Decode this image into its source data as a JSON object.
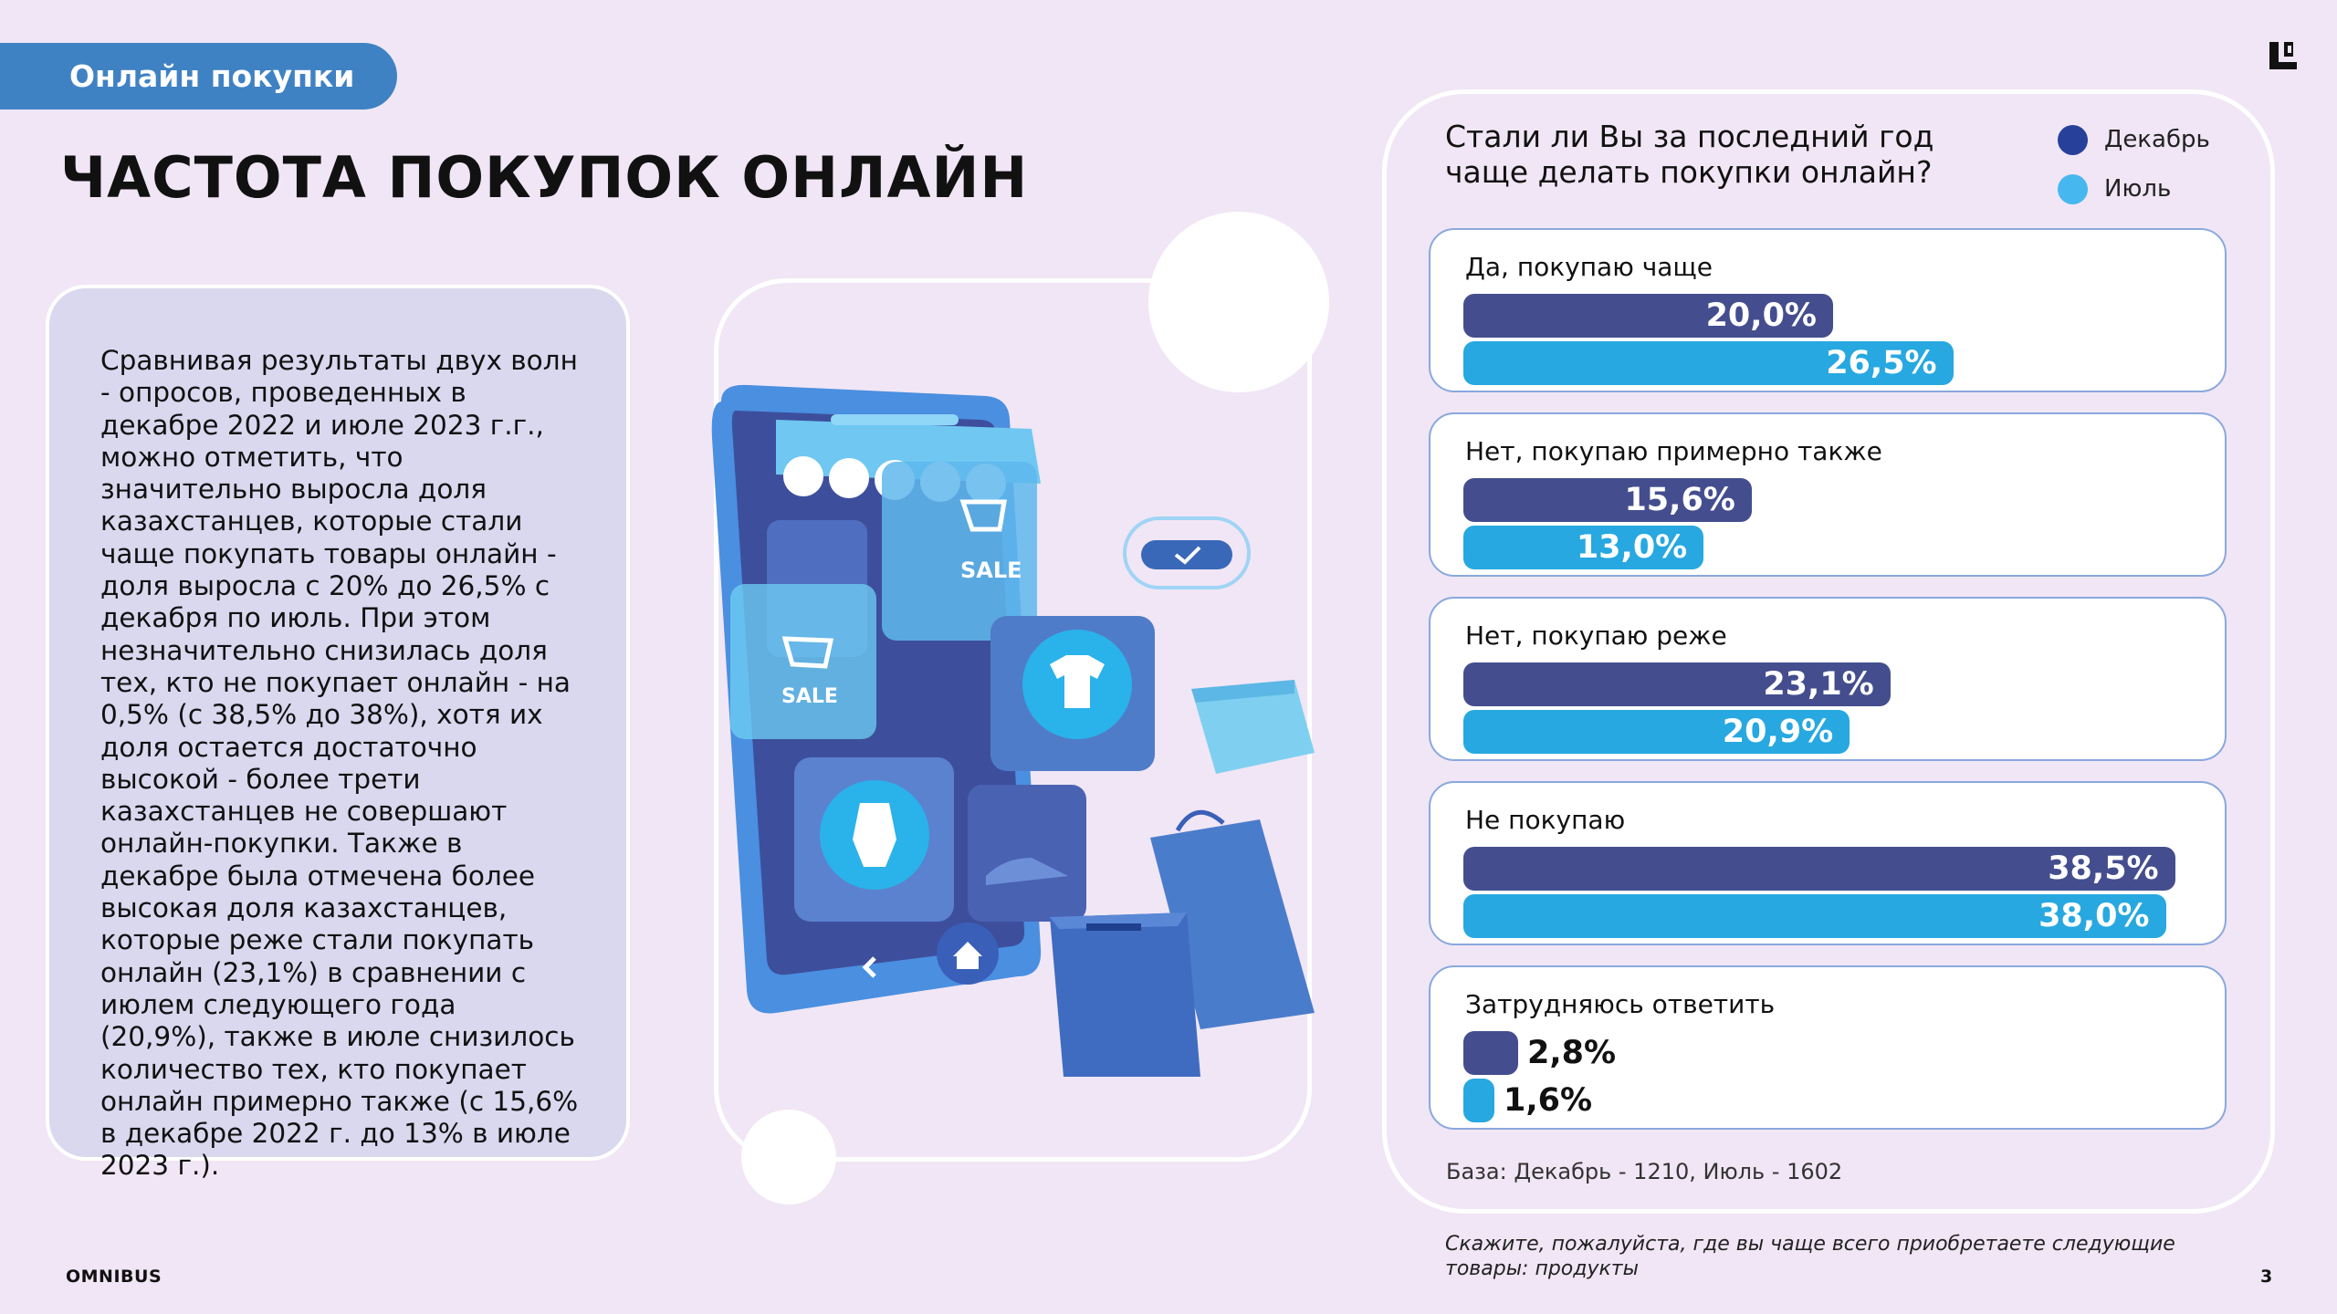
{
  "header": {
    "section_label": "Онлайн покупки",
    "title": "ЧАСТОТА ПОКУПОК ОНЛАЙН"
  },
  "summary_text": "Сравнивая результаты двух волн - опросов, проведенных в декабре 2022 и июле 2023 г.г., можно отметить, что значительно выросла доля казахстанцев, которые стали чаще покупать товары онлайн - доля выросла с 20% до 26,5% с декабря по июль. При этом незначительно снизилась доля тех, кто не покупает онлайн - на 0,5% (с 38,5% до 38%), хотя их доля остается достаточно высокой - более трети казахстанцев не совершают онлайн-покупки. Также в декабре была отмечена более высокая доля казахстанцев, которые реже стали покупать онлайн (23,1%) в сравнении с июлем следующего года (20,9%), также в июле снизилось количество тех, кто покупает онлайн примерно также (с 15,6% в декабре 2022 г. до 13% в июле 2023 г.).",
  "illustration": {
    "sale_tag_1": "SALE",
    "sale_tag_2": "SALE"
  },
  "chart_data": {
    "type": "bar",
    "orientation": "horizontal",
    "title": "Стали ли Вы за последний год чаще делать покупки онлайн?",
    "categories": [
      "Да, покупаю чаще",
      "Нет, покупаю примерно также",
      "Нет, покупаю реже",
      "Не покупаю",
      "Затрудняюсь ответить"
    ],
    "series": [
      {
        "name": "Декабрь",
        "color": "#444e8e",
        "values": [
          20.0,
          15.6,
          23.1,
          38.5,
          2.8
        ],
        "labels": [
          "20,0%",
          "15,6%",
          "23,1%",
          "38,5%",
          "2,8%"
        ]
      },
      {
        "name": "Июль",
        "color": "#27a8e0",
        "values": [
          26.5,
          13.0,
          20.9,
          38.0,
          1.6
        ],
        "labels": [
          "26,5%",
          "13,0%",
          "20,9%",
          "38,0%",
          "1,6%"
        ]
      }
    ],
    "xlim": [
      0,
      40
    ],
    "legend": "top-right",
    "grid": false,
    "base_note": "База: Декабрь - 1210, Июль - 1602"
  },
  "footnote": "Скажите, пожалуйста, где вы чаще всего приобретаете следующие товары: продукты",
  "footer": {
    "brand": "OMNIBUS",
    "page_number": "3"
  },
  "colors": {
    "background": "#f1e6f5",
    "accent": "#3f82c4"
  }
}
